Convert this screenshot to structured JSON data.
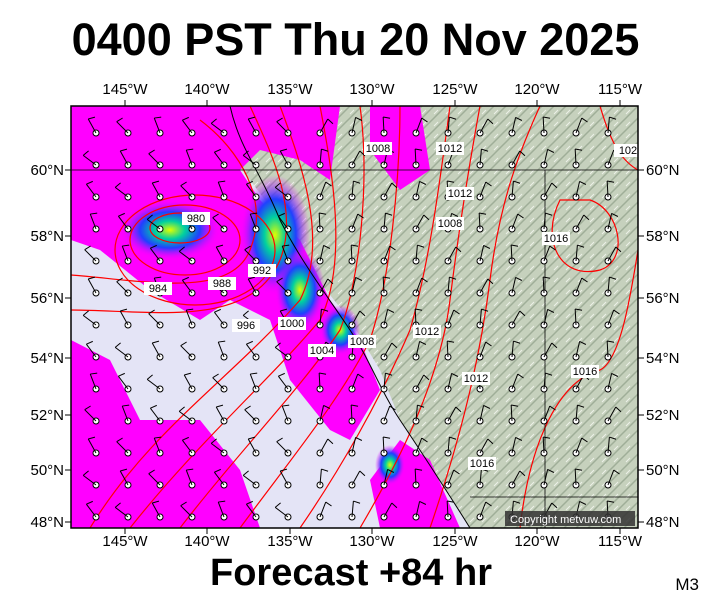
{
  "title": "0400 PST Thu 20 Nov 2025",
  "footer": "Forecast +84 hr",
  "model": "M3",
  "copyright": "Copyright metvuw.com",
  "map": {
    "lon_labels": [
      "145°W",
      "140°W",
      "135°W",
      "130°W",
      "125°W",
      "120°W",
      "115°W"
    ],
    "lat_labels": [
      "60°N",
      "58°N",
      "56°N",
      "54°N",
      "52°N",
      "50°N",
      "48°N"
    ],
    "isobar_labels": [
      "980",
      "984",
      "988",
      "992",
      "996",
      "1000",
      "1004",
      "1008",
      "1008",
      "1008",
      "1012",
      "1012",
      "1012",
      "1012",
      "1016",
      "1016",
      "1016",
      "102"
    ],
    "colors": {
      "ocean": "#e4e4f6",
      "precip_light": "#ff00ff",
      "precip_mid": "#3050ff",
      "precip_high": "#00e0d0",
      "land": "#c4cfbb",
      "isobar": "#ff0000"
    }
  }
}
